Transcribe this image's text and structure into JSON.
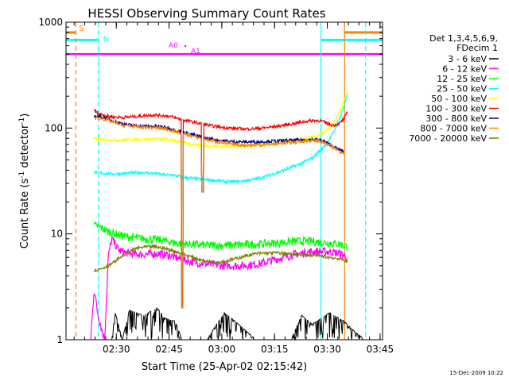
{
  "chart_data": {
    "type": "line",
    "title": "HESSI Observing Summary Count Rates",
    "xlabel": "Start Time (25-Apr-02 02:15:42)",
    "ylabel_prefix": "Count Rate (s",
    "ylabel_sup1": "-1",
    "ylabel_mid": " detector",
    "ylabel_sup2": "-1",
    "ylabel_suffix": ")",
    "yscale": "log",
    "ylim": [
      1,
      1000
    ],
    "x_unit": "minutes since 02:15:42",
    "xlim": [
      0,
      90
    ],
    "grid": false,
    "legend_placement": "right",
    "legend_header": [
      "Det 1,3,4,5,6,9,",
      "FDecim 1"
    ],
    "x_ticks": [
      {
        "at": 14.3,
        "label": "02:30"
      },
      {
        "at": 29.3,
        "label": "02:45"
      },
      {
        "at": 44.3,
        "label": "03:00"
      },
      {
        "at": 59.3,
        "label": "03:15"
      },
      {
        "at": 74.3,
        "label": "03:30"
      },
      {
        "at": 89.3,
        "label": "03:45"
      }
    ],
    "y_ticks": [
      {
        "at": 1,
        "label": "1"
      },
      {
        "at": 10,
        "label": "10"
      },
      {
        "at": 100,
        "label": "100"
      },
      {
        "at": 1000,
        "label": "1000"
      }
    ],
    "series": [
      {
        "name": "3 - 6 keV",
        "color": "#000000",
        "points": [
          [
            7,
            1
          ],
          [
            10,
            1
          ],
          [
            13,
            1
          ],
          [
            14,
            1.8
          ],
          [
            16,
            1
          ],
          [
            18,
            1.9
          ],
          [
            22,
            1.7
          ],
          [
            26,
            2
          ],
          [
            28,
            1.6
          ],
          [
            31,
            1.5
          ],
          [
            33,
            1
          ],
          [
            40,
            1
          ],
          [
            45,
            1.8
          ],
          [
            48,
            1.5
          ],
          [
            54,
            1
          ],
          [
            64,
            1
          ],
          [
            67,
            1.7
          ],
          [
            70,
            1.4
          ],
          [
            75,
            1.8
          ],
          [
            79,
            1.5
          ],
          [
            82,
            1.2
          ],
          [
            85,
            1
          ]
        ]
      },
      {
        "name": "6 - 12 keV",
        "color": "#ff00ff",
        "points": [
          [
            7,
            1
          ],
          [
            8,
            3
          ],
          [
            9,
            1.8
          ],
          [
            10,
            1.3
          ],
          [
            11,
            1
          ],
          [
            12,
            6
          ],
          [
            13,
            9
          ],
          [
            15,
            7
          ],
          [
            18,
            6.5
          ],
          [
            22,
            6.4
          ],
          [
            26,
            6.5
          ],
          [
            29,
            6.3
          ],
          [
            31,
            6
          ],
          [
            35,
            5.5
          ],
          [
            40,
            5.2
          ],
          [
            45,
            5
          ],
          [
            50,
            5
          ],
          [
            55,
            5.2
          ],
          [
            60,
            5.8
          ],
          [
            65,
            6.4
          ],
          [
            70,
            6.8
          ],
          [
            75,
            6.8
          ],
          [
            78,
            6.5
          ],
          [
            80,
            6
          ]
        ]
      },
      {
        "name": "12 - 25 keV",
        "color": "#00ff00",
        "points": [
          [
            8,
            12
          ],
          [
            10,
            11.5
          ],
          [
            12,
            10.5
          ],
          [
            15,
            9.8
          ],
          [
            18,
            9.3
          ],
          [
            22,
            9
          ],
          [
            26,
            8.8
          ],
          [
            29,
            8.5
          ],
          [
            31,
            8.2
          ],
          [
            35,
            8
          ],
          [
            40,
            7.8
          ],
          [
            45,
            7.8
          ],
          [
            50,
            7.9
          ],
          [
            55,
            8
          ],
          [
            60,
            8.2
          ],
          [
            65,
            8.5
          ],
          [
            70,
            8.5
          ],
          [
            75,
            8.2
          ],
          [
            78,
            8
          ],
          [
            80,
            7.5
          ]
        ]
      },
      {
        "name": "25 - 50 keV",
        "color": "#00ffff",
        "points": [
          [
            8,
            38
          ],
          [
            10,
            37.5
          ],
          [
            12,
            37
          ],
          [
            15,
            37
          ],
          [
            18,
            37.5
          ],
          [
            22,
            38
          ],
          [
            26,
            37
          ],
          [
            28,
            36
          ],
          [
            30,
            36
          ],
          [
            34,
            34
          ],
          [
            38,
            33
          ],
          [
            42,
            32
          ],
          [
            46,
            31
          ],
          [
            50,
            31.5
          ],
          [
            54,
            33
          ],
          [
            58,
            36
          ],
          [
            62,
            40
          ],
          [
            66,
            45
          ],
          [
            70,
            52
          ],
          [
            74,
            70
          ],
          [
            76,
            90
          ],
          [
            78,
            130
          ],
          [
            79,
            160
          ],
          [
            80,
            210
          ]
        ]
      },
      {
        "name": "50 - 100 keV",
        "color": "#ffff00",
        "points": [
          [
            8,
            79
          ],
          [
            10,
            78
          ],
          [
            13,
            77
          ],
          [
            16,
            77
          ],
          [
            19,
            78
          ],
          [
            22,
            78
          ],
          [
            25,
            79
          ],
          [
            28,
            78
          ],
          [
            30,
            77
          ],
          [
            33,
            74
          ],
          [
            36,
            70
          ],
          [
            40,
            68
          ],
          [
            44,
            67
          ],
          [
            48,
            67
          ],
          [
            52,
            68
          ],
          [
            56,
            70
          ],
          [
            60,
            73
          ],
          [
            64,
            75
          ],
          [
            67,
            78
          ],
          [
            70,
            82
          ],
          [
            73,
            88
          ],
          [
            75,
            100
          ],
          [
            77,
            125
          ],
          [
            78,
            150
          ],
          [
            79,
            180
          ],
          [
            80,
            220
          ]
        ]
      },
      {
        "name": "100 - 300 keV",
        "color": "#ff0000",
        "points": [
          [
            8,
            148
          ],
          [
            9,
            138
          ],
          [
            11,
            132
          ],
          [
            13,
            128
          ],
          [
            16,
            126
          ],
          [
            19,
            128
          ],
          [
            22,
            131
          ],
          [
            25,
            133
          ],
          [
            28,
            131
          ],
          [
            30,
            128
          ],
          [
            33,
            120
          ],
          [
            36,
            114
          ],
          [
            39,
            109
          ],
          [
            42,
            104
          ],
          [
            45,
            101
          ],
          [
            48,
            99
          ],
          [
            52,
            98
          ],
          [
            56,
            100
          ],
          [
            60,
            104
          ],
          [
            64,
            109
          ],
          [
            67,
            114
          ],
          [
            70,
            118
          ],
          [
            72,
            118
          ],
          [
            74,
            112
          ],
          [
            76,
            106
          ],
          [
            78,
            112
          ],
          [
            79,
            122
          ],
          [
            80,
            140
          ]
        ]
      },
      {
        "name": "300 - 800 keV",
        "color": "#000080",
        "points": [
          [
            8,
            130
          ],
          [
            10,
            128
          ],
          [
            12,
            122
          ],
          [
            14,
            115
          ],
          [
            16,
            110
          ],
          [
            18,
            107
          ],
          [
            21,
            105
          ],
          [
            24,
            104
          ],
          [
            27,
            103
          ],
          [
            29,
            100
          ],
          [
            31,
            96
          ],
          [
            34,
            90
          ],
          [
            37,
            85
          ],
          [
            40,
            80
          ],
          [
            43,
            77
          ],
          [
            46,
            75
          ],
          [
            50,
            74
          ],
          [
            54,
            74
          ],
          [
            58,
            75
          ],
          [
            62,
            76
          ],
          [
            66,
            77
          ],
          [
            69,
            78
          ],
          [
            71,
            78
          ],
          [
            73,
            76
          ],
          [
            75,
            70
          ],
          [
            77,
            64
          ],
          [
            79,
            60
          ]
        ]
      },
      {
        "name": "800 - 7000 keV",
        "color": "#ff8000",
        "points": [
          [
            8,
            125
          ],
          [
            10,
            123
          ],
          [
            12,
            118
          ],
          [
            14,
            112
          ],
          [
            16,
            107
          ],
          [
            18,
            104
          ],
          [
            21,
            102
          ],
          [
            24,
            101
          ],
          [
            27,
            100
          ],
          [
            29,
            97
          ],
          [
            31,
            93
          ],
          [
            34,
            87
          ],
          [
            37,
            82
          ],
          [
            40,
            78
          ],
          [
            43,
            74
          ],
          [
            46,
            71
          ],
          [
            50,
            69
          ],
          [
            54,
            69
          ],
          [
            58,
            70
          ],
          [
            62,
            72
          ],
          [
            66,
            74
          ],
          [
            69,
            76
          ],
          [
            71,
            76
          ],
          [
            73,
            73
          ],
          [
            75,
            68
          ],
          [
            77,
            62
          ],
          [
            79,
            58
          ]
        ]
      },
      {
        "name": "7000 - 20000 keV",
        "color": "#808000",
        "points": [
          [
            8,
            4.5
          ],
          [
            10,
            4.7
          ],
          [
            12,
            5
          ],
          [
            14,
            5.5
          ],
          [
            16,
            6.2
          ],
          [
            18,
            6.8
          ],
          [
            20,
            7.3
          ],
          [
            22,
            7.5
          ],
          [
            25,
            7.6
          ],
          [
            28,
            7.3
          ],
          [
            30,
            7
          ],
          [
            33,
            6.5
          ],
          [
            36,
            6
          ],
          [
            39,
            5.6
          ],
          [
            42,
            5.4
          ],
          [
            45,
            5.5
          ],
          [
            48,
            5.8
          ],
          [
            51,
            6.2
          ],
          [
            54,
            6.5
          ],
          [
            57,
            6.6
          ],
          [
            60,
            6.6
          ],
          [
            63,
            6.5
          ],
          [
            66,
            6.4
          ],
          [
            69,
            6.3
          ],
          [
            72,
            6.2
          ],
          [
            75,
            6
          ],
          [
            78,
            5.8
          ],
          [
            80,
            5.5
          ]
        ]
      }
    ],
    "attenuator_states": [
      {
        "label": "S",
        "color": "#ff8000",
        "level": 800,
        "segments": [
          [
            -4.5,
            2.8
          ],
          [
            79,
            90
          ]
        ]
      },
      {
        "label": "N",
        "color": "#00ffff",
        "level": 680,
        "segments": [
          [
            -4.5,
            9.2
          ],
          [
            72.5,
            90
          ]
        ]
      }
    ],
    "attenuator_label_A": [
      {
        "label": "A0",
        "color": "#ff00ff"
      },
      {
        "label": "A1",
        "color": "#ff00ff"
      }
    ],
    "magenta_level": 500,
    "vertical_markers": [
      {
        "x": 2.8,
        "color": "#ff8000",
        "style": "dashed"
      },
      {
        "x": 9.2,
        "color": "#00ffff",
        "style": "dashed"
      },
      {
        "x": 72.5,
        "color": "#00ffff",
        "style": "solid"
      },
      {
        "x": 79.2,
        "color": "#ff8000",
        "style": "solid"
      },
      {
        "x": 85.2,
        "color": "#00ffff",
        "style": "dashed"
      }
    ],
    "dips": [
      {
        "series_names": [
          "100 - 300 keV",
          "300 - 800 keV",
          "800 - 7000 keV",
          "50 - 100 keV"
        ],
        "x": 33.0,
        "depth_to": 2
      },
      {
        "series_names": [
          "100 - 300 keV",
          "300 - 800 keV",
          "800 - 7000 keV",
          "50 - 100 keV"
        ],
        "x": 38.8,
        "depth_to": 25
      }
    ]
  },
  "footer": {
    "timestamp": "15-Dec-2009 10:22"
  }
}
